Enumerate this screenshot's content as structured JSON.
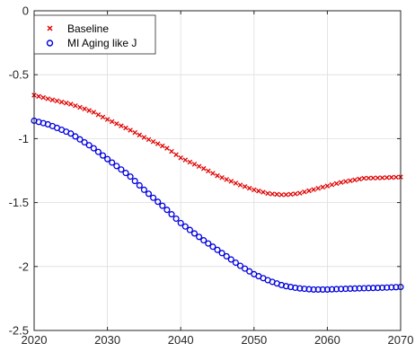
{
  "chart_data": {
    "type": "scatter",
    "title": "",
    "xlabel": "",
    "ylabel": "",
    "xlim": [
      2020,
      2070
    ],
    "ylim": [
      -2.5,
      0
    ],
    "xticks": [
      2020,
      2030,
      2040,
      2050,
      2060,
      2070
    ],
    "yticks": [
      0,
      -0.5,
      -1,
      -1.5,
      -2,
      -2.5
    ],
    "xtick_labels": [
      "2020",
      "2030",
      "2040",
      "2050",
      "2060",
      "2070"
    ],
    "ytick_labels": [
      "0",
      "-0.5",
      "-1",
      "-1.5",
      "-2",
      "-2.5"
    ],
    "grid": true,
    "legend_position": "top-left",
    "x_step": 0.625,
    "series": [
      {
        "name": "Baseline",
        "marker": "x",
        "color": "#e00000",
        "anchors": [
          [
            2020,
            -0.66
          ],
          [
            2022,
            -0.69
          ],
          [
            2025,
            -0.73
          ],
          [
            2028,
            -0.79
          ],
          [
            2030,
            -0.85
          ],
          [
            2033,
            -0.93
          ],
          [
            2035,
            -0.99
          ],
          [
            2038,
            -1.07
          ],
          [
            2040,
            -1.15
          ],
          [
            2043,
            -1.23
          ],
          [
            2045,
            -1.29
          ],
          [
            2048,
            -1.36
          ],
          [
            2050,
            -1.4
          ],
          [
            2052,
            -1.43
          ],
          [
            2054,
            -1.44
          ],
          [
            2056,
            -1.43
          ],
          [
            2058,
            -1.4
          ],
          [
            2060,
            -1.37
          ],
          [
            2062,
            -1.34
          ],
          [
            2065,
            -1.31
          ],
          [
            2068,
            -1.305
          ],
          [
            2070,
            -1.3
          ]
        ]
      },
      {
        "name": "MI Aging like J",
        "marker": "o",
        "color": "#0000dd",
        "anchors": [
          [
            2020,
            -0.86
          ],
          [
            2022,
            -0.89
          ],
          [
            2025,
            -0.96
          ],
          [
            2028,
            -1.07
          ],
          [
            2030,
            -1.16
          ],
          [
            2033,
            -1.29
          ],
          [
            2035,
            -1.4
          ],
          [
            2038,
            -1.55
          ],
          [
            2040,
            -1.66
          ],
          [
            2043,
            -1.79
          ],
          [
            2045,
            -1.87
          ],
          [
            2048,
            -1.99
          ],
          [
            2050,
            -2.06
          ],
          [
            2052,
            -2.11
          ],
          [
            2054,
            -2.15
          ],
          [
            2056,
            -2.17
          ],
          [
            2058,
            -2.18
          ],
          [
            2060,
            -2.18
          ],
          [
            2062,
            -2.175
          ],
          [
            2065,
            -2.17
          ],
          [
            2068,
            -2.165
          ],
          [
            2070,
            -2.16
          ]
        ]
      }
    ]
  }
}
